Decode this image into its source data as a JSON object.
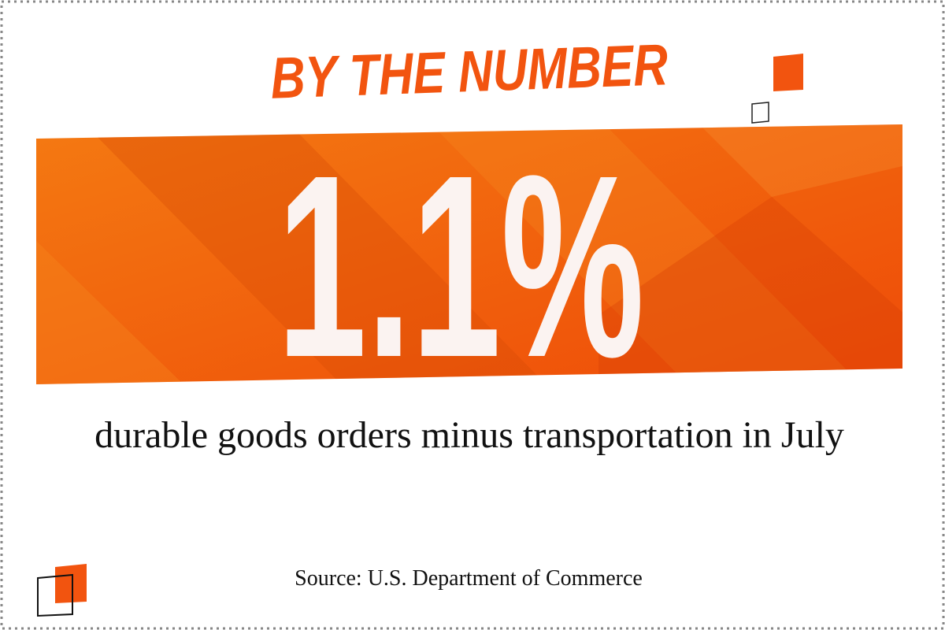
{
  "header": {
    "title": "BY THE NUMBER"
  },
  "stat": {
    "value": "1.1%",
    "caption": "durable goods orders minus transportation in July"
  },
  "footer": {
    "source": "Source: U.S. Department of Commerce"
  }
}
